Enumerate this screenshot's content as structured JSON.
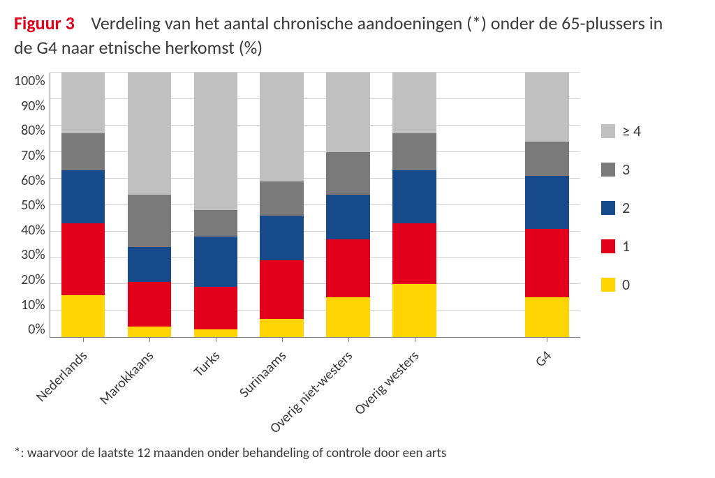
{
  "title": {
    "label": "Figuur 3",
    "text": "Verdeling van het aantal chronische aandoeningen (*) onder de 65-plussers in de G4 naar etnische herkomst (%)",
    "label_color": "#e2001a",
    "text_color": "#3a3a3a",
    "fontsize": 26
  },
  "chart": {
    "type": "stacked-bar",
    "background_color": "#ffffff",
    "axis_color": "#7a7a7a",
    "grid_color": "#d0d0d0",
    "ylim": [
      0,
      100
    ],
    "ytick_step": 10,
    "ytick_labels": [
      "0%",
      "10%",
      "20%",
      "30%",
      "40%",
      "50%",
      "60%",
      "70%",
      "80%",
      "90%",
      "100%"
    ],
    "label_fontsize": 20,
    "bar_width": 0.66,
    "categories": [
      "Nederlands",
      "Marokkaans",
      "Turks",
      "Surinaams",
      "Overig niet-westers",
      "Overig westers",
      "",
      "G4"
    ],
    "gap_indices": [
      6
    ],
    "series": [
      {
        "name": "0",
        "color": "#ffd400"
      },
      {
        "name": "1",
        "color": "#e2001a"
      },
      {
        "name": "2",
        "color": "#174a8b"
      },
      {
        "name": "3",
        "color": "#7a7a7a"
      },
      {
        "name": "≥ 4",
        "color": "#c0c0c0"
      }
    ],
    "values": {
      "0": [
        16,
        4,
        3,
        7,
        15,
        20,
        0,
        15
      ],
      "1": [
        27,
        17,
        16,
        22,
        22,
        23,
        0,
        26
      ],
      "2": [
        20,
        13,
        19,
        17,
        17,
        20,
        0,
        20
      ],
      "3": [
        14,
        20,
        10,
        13,
        16,
        14,
        0,
        13
      ],
      "≥ 4": [
        23,
        46,
        52,
        41,
        30,
        23,
        0,
        26
      ]
    }
  },
  "legend": {
    "fontsize": 22,
    "items": [
      {
        "label": "≥ 4",
        "color": "#c0c0c0"
      },
      {
        "label": "3",
        "color": "#7a7a7a"
      },
      {
        "label": "2",
        "color": "#174a8b"
      },
      {
        "label": "1",
        "color": "#e2001a"
      },
      {
        "label": "0",
        "color": "#ffd400"
      }
    ]
  },
  "footnote": "*: waarvoor de laatste 12 maanden onder behandeling of controle door een arts"
}
